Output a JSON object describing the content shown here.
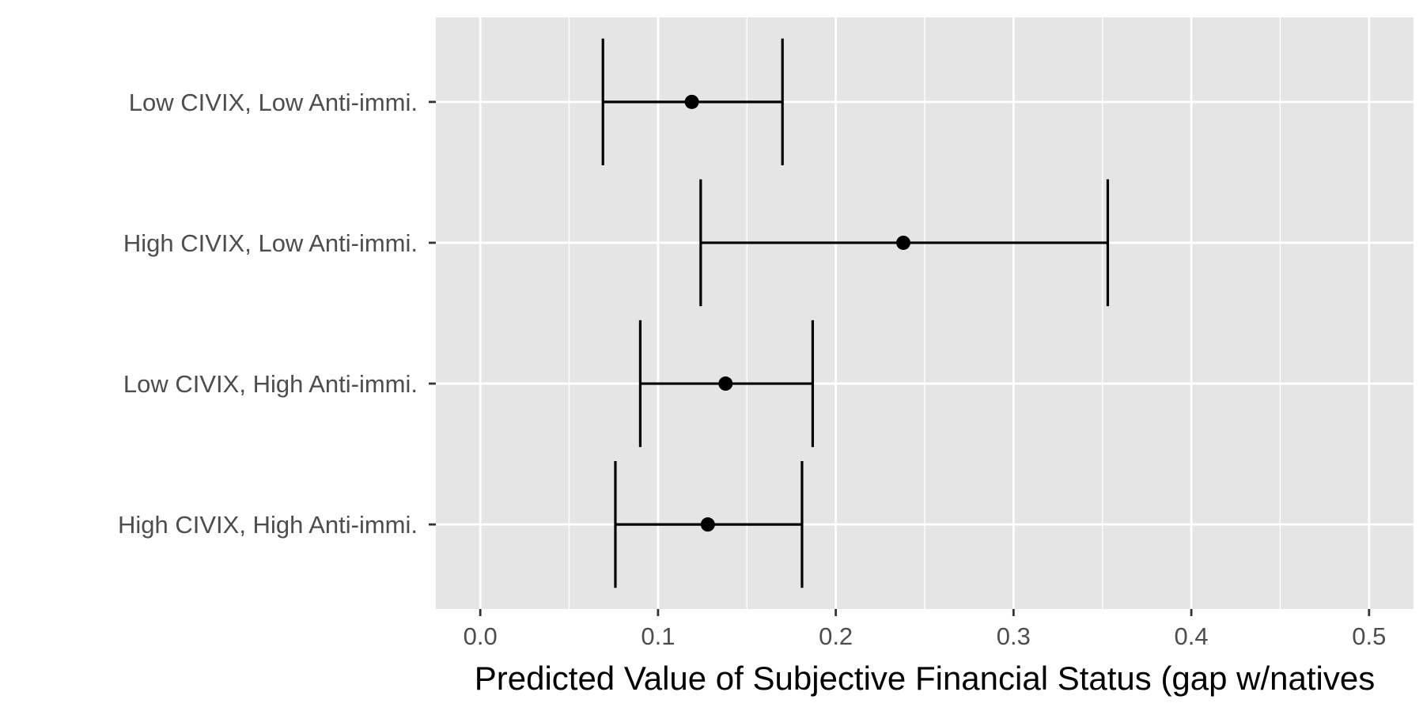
{
  "chart_data": {
    "type": "errorbar",
    "title": "",
    "xlabel": "Predicted Value of Subjective Financial Status (gap w/natives",
    "ylabel": "",
    "xlim": [
      -0.025,
      0.525
    ],
    "x_ticks": [
      0.0,
      0.1,
      0.2,
      0.3,
      0.4,
      0.5
    ],
    "x_tick_labels": [
      "0.0",
      "0.1",
      "0.2",
      "0.3",
      "0.4",
      "0.5"
    ],
    "x_minor_ticks": [
      0.05,
      0.15,
      0.25,
      0.35,
      0.45
    ],
    "grid": true,
    "legend": "none",
    "categories": [
      "Low CIVIX, Low Anti-immi.",
      "High CIVIX, Low Anti-immi.",
      "Low CIVIX, High Anti-immi.",
      "High CIVIX, High Anti-immi."
    ],
    "points": [
      {
        "category": "Low CIVIX, Low Anti-immi.",
        "estimate": 0.119,
        "lower": 0.069,
        "upper": 0.17
      },
      {
        "category": "High CIVIX, Low Anti-immi.",
        "estimate": 0.238,
        "lower": 0.124,
        "upper": 0.353
      },
      {
        "category": "Low CIVIX, High Anti-immi.",
        "estimate": 0.138,
        "lower": 0.09,
        "upper": 0.187
      },
      {
        "category": "High CIVIX, High Anti-immi.",
        "estimate": 0.128,
        "lower": 0.076,
        "upper": 0.181
      }
    ],
    "colors": {
      "panel_background": "#e5e5e5",
      "grid": "#ffffff",
      "marks": "#000000",
      "tick_text": "#4d4d4d"
    }
  }
}
